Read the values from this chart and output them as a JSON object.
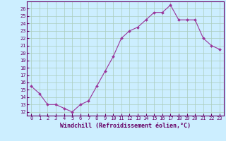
{
  "x": [
    0,
    1,
    2,
    3,
    4,
    5,
    6,
    7,
    8,
    9,
    10,
    11,
    12,
    13,
    14,
    15,
    16,
    17,
    18,
    19,
    20,
    21,
    22,
    23
  ],
  "y": [
    15.5,
    14.5,
    13.0,
    13.0,
    12.5,
    12.0,
    13.0,
    13.5,
    15.5,
    17.5,
    19.5,
    22.0,
    23.0,
    23.5,
    24.5,
    25.5,
    25.5,
    26.5,
    24.5,
    24.5,
    24.5,
    22.0,
    21.0,
    20.5
  ],
  "line_color": "#993399",
  "marker": "D",
  "marker_size": 2.0,
  "bg_color": "#cceeff",
  "grid_color": "#aaccbb",
  "xlabel": "Windchill (Refroidissement éolien,°C)",
  "ylim": [
    11.5,
    27.0
  ],
  "xlim": [
    -0.5,
    23.5
  ],
  "yticks": [
    12,
    13,
    14,
    15,
    16,
    17,
    18,
    19,
    20,
    21,
    22,
    23,
    24,
    25,
    26
  ],
  "xticks": [
    0,
    1,
    2,
    3,
    4,
    5,
    6,
    7,
    8,
    9,
    10,
    11,
    12,
    13,
    14,
    15,
    16,
    17,
    18,
    19,
    20,
    21,
    22,
    23
  ],
  "tick_fontsize": 5.0,
  "xlabel_fontsize": 6.0,
  "axis_color": "#660066",
  "spine_color": "#660066",
  "linewidth": 0.8
}
